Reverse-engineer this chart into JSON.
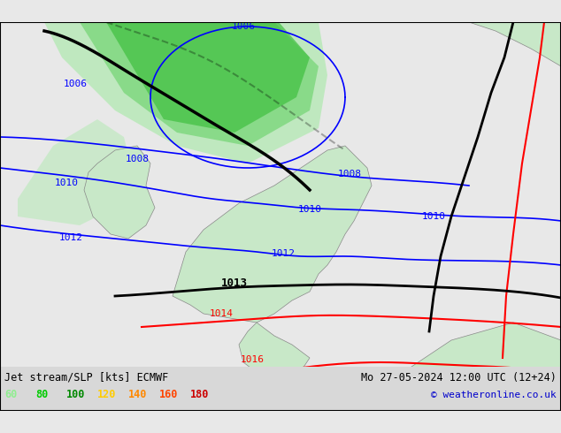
{
  "title_left": "Jet stream/SLP [kts] ECMWF",
  "title_right": "Mo 27-05-2024 12:00 UTC (12+24)",
  "copyright": "© weatheronline.co.uk",
  "legend_values": [
    "60",
    "80",
    "100",
    "120",
    "140",
    "160",
    "180"
  ],
  "legend_colors": [
    "#90ee90",
    "#00cc00",
    "#008800",
    "#ffcc00",
    "#ff8800",
    "#ff4400",
    "#cc0000"
  ],
  "bg_color": "#e8e8e8",
  "land_color": "#c8e8c8",
  "fig_width": 6.34,
  "fig_height": 4.9,
  "dpi": 100
}
